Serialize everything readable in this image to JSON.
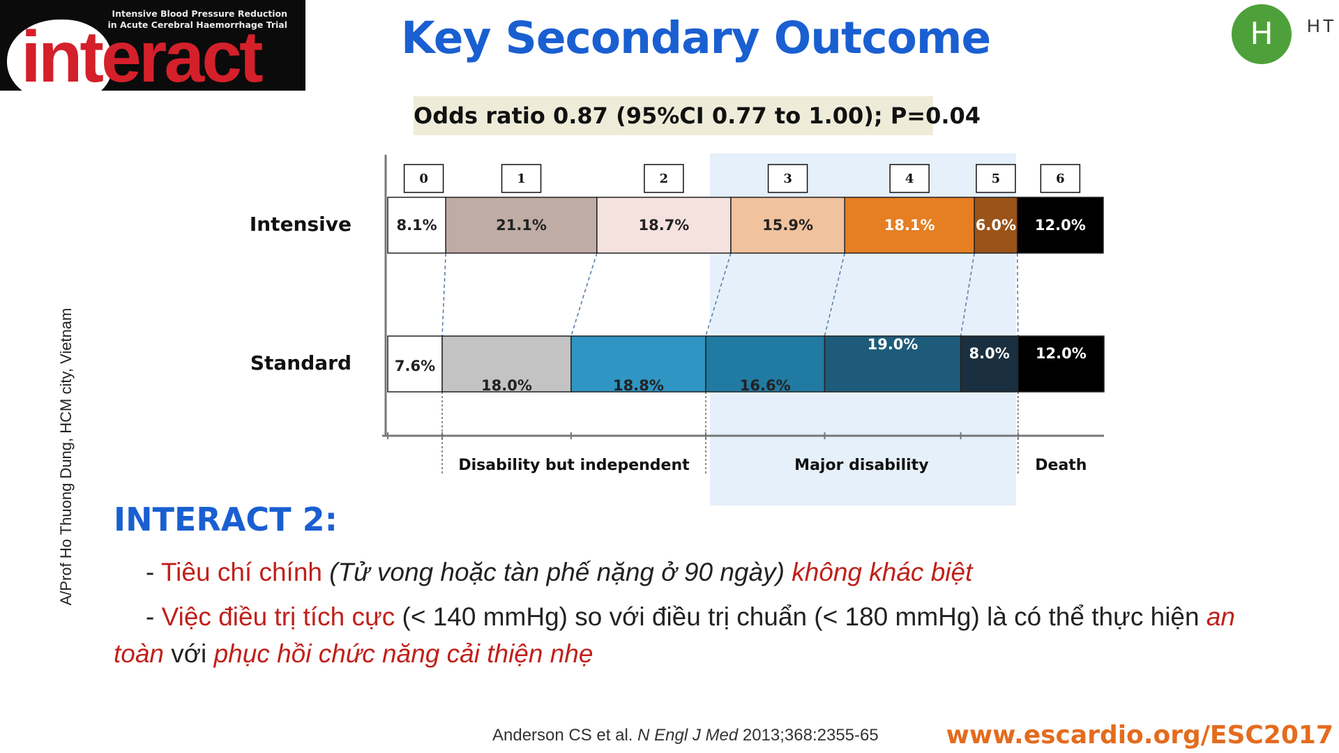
{
  "logo": {
    "subtitle_line1": "Intensive Blood Pressure Reduction",
    "subtitle_line2": "in Acute Cerebral Haemorrhage Trial",
    "wordmark": "interact"
  },
  "slide": {
    "title": "Key Secondary Outcome",
    "avatar_letter": "H",
    "avatar_initials": "HT",
    "odds_ratio": "Odds ratio 0.87 (95%CI 0.77 to 1.00); P=0.04",
    "side_credit": "A/Prof Ho Thuong Dung, HCM city, Vietnam"
  },
  "chart_data": {
    "type": "bar",
    "orientation": "horizontal-stacked-100",
    "title": "Key Secondary Outcome",
    "categories": [
      "0",
      "1",
      "2",
      "3",
      "4",
      "5",
      "6"
    ],
    "series": [
      {
        "name": "Intensive",
        "values": [
          8.1,
          21.1,
          18.7,
          15.9,
          18.1,
          6.0,
          12.0
        ],
        "labels": [
          "8.1%",
          "21.1%",
          "18.7%",
          "15.9%",
          "18.1%",
          "6.0%",
          "12.0%"
        ]
      },
      {
        "name": "Standard",
        "values": [
          7.6,
          18.0,
          18.8,
          16.6,
          19.0,
          8.0,
          12.0
        ],
        "labels": [
          "7.6%",
          "18.0%",
          "18.8%",
          "16.6%",
          "19.0%",
          "8.0%",
          "12.0%"
        ]
      }
    ],
    "groups": [
      {
        "label": "Disability but independent",
        "categories": [
          "1",
          "2"
        ]
      },
      {
        "label": "Major disability",
        "categories": [
          "3",
          "4",
          "5"
        ]
      },
      {
        "label": "Death",
        "categories": [
          "6"
        ]
      }
    ],
    "xlim": [
      0,
      100
    ],
    "colors": {
      "Intensive": [
        "#ffffff",
        "#bfaca5",
        "#f5e2df",
        "#f0c29e",
        "#e67e22",
        "#9a5318",
        "#000000"
      ],
      "Standard": [
        "#ffffff",
        "#c3c3c3",
        "#2f95c3",
        "#217aa1",
        "#1e5b7a",
        "#1a2f3f",
        "#000000"
      ],
      "highlight": "#e6f0fa",
      "connector": "#5a7fa8"
    }
  },
  "body": {
    "heading": "INTERACT 2:",
    "b1_part1": "- ",
    "b1_part2": "Tiêu chí chính",
    "b1_part3": " (Tử vong hoặc tàn phế nặng ở 90 ngày) ",
    "b1_part4": "không khác biệt",
    "b2_part1": "- ",
    "b2_part2": "Việc điều trị tích cực",
    "b2_part3": " (< 140 mmHg) so với điều trị chuẩn (< 180 mmHg) là có thể thực hiện ",
    "b2_part4": "an toàn",
    "b2_part5": " với ",
    "b2_part6": "phục hồi chức năng cải thiện nhẹ"
  },
  "footer": {
    "cite_authors": "Anderson CS et al. ",
    "cite_journal": "N Engl J Med",
    "cite_rest": " 2013;368:2355-65",
    "url": "www.escardio.org/ESC2017"
  }
}
